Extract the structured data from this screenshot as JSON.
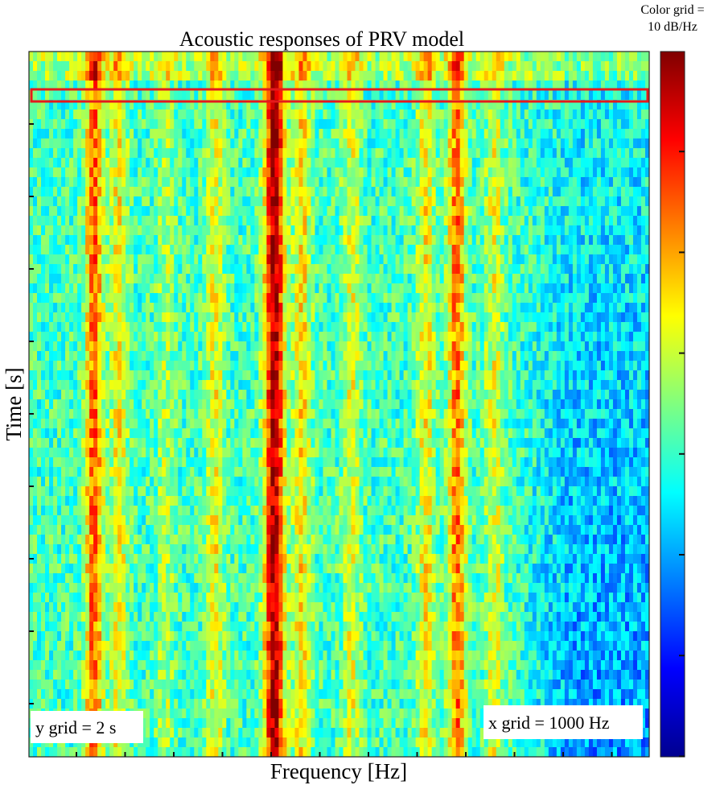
{
  "chart_data": {
    "type": "heatmap",
    "title": "Acoustic responses of PRV model",
    "xlabel": "Frequency [Hz]",
    "ylabel": "Time [s]",
    "x_grid_note": "x grid = 1000 Hz",
    "y_grid_note": "y grid = 2 s",
    "colorbar": {
      "title_line1": "Color grid =",
      "title_line2": "10 dB/Hz",
      "colormap": "jet",
      "tick_count": 7
    },
    "x_grid_step_hz": 1000,
    "y_grid_step_s": 2,
    "x_tick_count": 12,
    "y_tick_count": 9,
    "bands": [
      {
        "x_frac": 0.105,
        "strength": 1.0
      },
      {
        "x_frac": 0.145,
        "strength": 0.55
      },
      {
        "x_frac": 0.22,
        "strength": 0.3
      },
      {
        "x_frac": 0.3,
        "strength": 0.5
      },
      {
        "x_frac": 0.39,
        "strength": 0.75
      },
      {
        "x_frac": 0.4,
        "strength": 1.0
      },
      {
        "x_frac": 0.44,
        "strength": 0.6
      },
      {
        "x_frac": 0.52,
        "strength": 0.45
      },
      {
        "x_frac": 0.64,
        "strength": 0.55
      },
      {
        "x_frac": 0.69,
        "strength": 0.95
      },
      {
        "x_frac": 0.75,
        "strength": 0.45
      }
    ],
    "highlight": {
      "label": "highlighted time window",
      "color": "#e41a1c"
    }
  }
}
